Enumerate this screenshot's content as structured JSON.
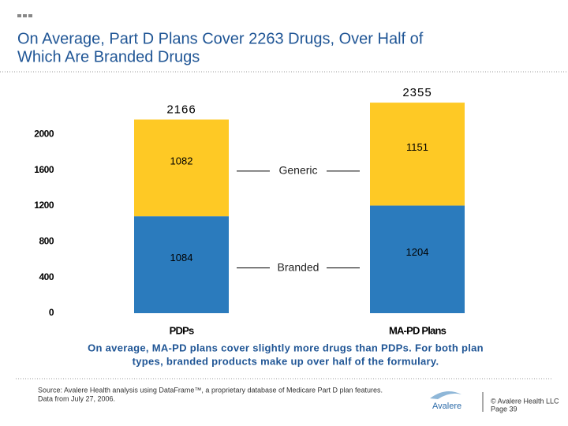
{
  "header": {
    "title_lines": [
      "On Average, Part D Plans Cover 2263 Drugs, Over Half of",
      "Which Are Branded Drugs"
    ]
  },
  "chart_data": {
    "type": "bar",
    "stacked": true,
    "categories": [
      "PDPs",
      "MA-PD Plans"
    ],
    "series": [
      {
        "name": "Branded",
        "color": "#2b7bbd",
        "values": [
          1084,
          1204
        ]
      },
      {
        "name": "Generic",
        "color": "#fec925",
        "values": [
          1082,
          1151
        ]
      }
    ],
    "totals": [
      2166,
      2355
    ],
    "ylim": [
      0,
      2400
    ],
    "yticks": [
      0,
      400,
      800,
      1200,
      1600,
      2000
    ]
  },
  "caption": "On average, MA-PD plans cover slightly more drugs than PDPs.  For both plan types, branded products make up over half of the formulary.",
  "footer": {
    "source_lines": [
      "Source:  Avalere Health analysis using DataFrame™, a proprietary database of Medicare Part D plan features.",
      "Data from July 27, 2006."
    ],
    "logo": "Avalere",
    "copyright": "© Avalere Health LLC",
    "page": "Page 39"
  }
}
